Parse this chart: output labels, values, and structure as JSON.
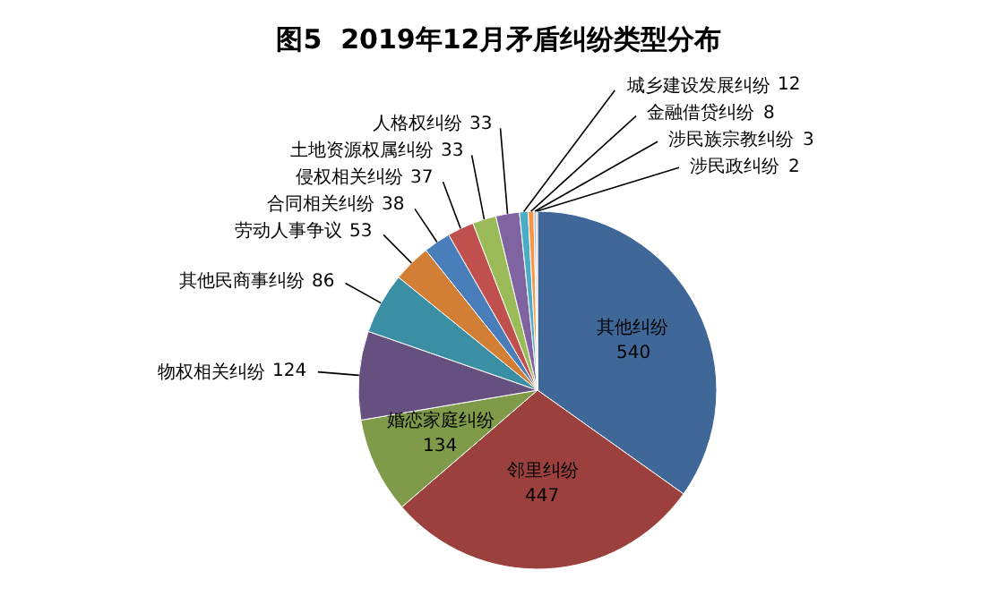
{
  "chart_data": {
    "type": "pie",
    "title": "图5  2019年12月矛盾纠纷类型分布",
    "categories": [
      "其他纠纷",
      "邻里纠纷",
      "婚恋家庭纠纷",
      "物权相关纠纷",
      "其他民商事纠纷",
      "劳动人事争议",
      "合同相关纠纷",
      "侵权相关纠纷",
      "土地资源权属纠纷",
      "人格权纠纷",
      "城乡建设发展纠纷",
      "金融借贷纠纷",
      "涉民族宗教纠纷",
      "涉民政纠纷"
    ],
    "values": [
      540,
      447,
      134,
      124,
      86,
      53,
      38,
      37,
      33,
      33,
      12,
      8,
      3,
      2
    ],
    "colors": [
      "#3f6797",
      "#9b403d",
      "#7f9a48",
      "#66507f",
      "#3a8fa5",
      "#d37e35",
      "#4a7ebb",
      "#c0504d",
      "#9bbb59",
      "#8064a2",
      "#4bacc6",
      "#f79646",
      "#a5b4d2",
      "#d99694"
    ],
    "data_labels": true,
    "legend": false
  }
}
